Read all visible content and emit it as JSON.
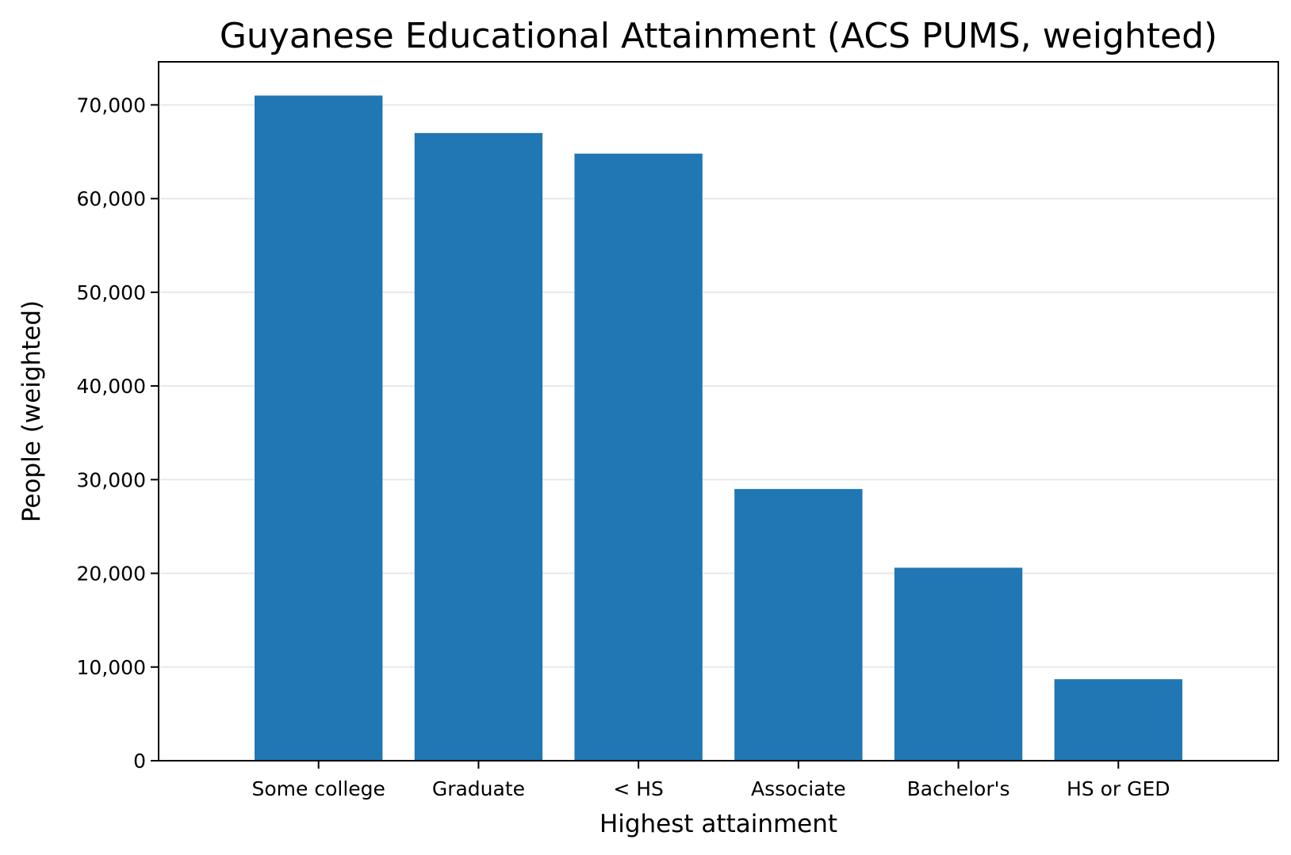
{
  "chart_data": {
    "type": "bar",
    "title": "Guyanese Educational Attainment (ACS PUMS, weighted)",
    "xlabel": "Highest attainment",
    "ylabel": "People (weighted)",
    "categories": [
      "Some college",
      "Graduate",
      "< HS",
      "Associate",
      "Bachelor's",
      "HS or GED"
    ],
    "values": [
      71000,
      67000,
      64800,
      29000,
      20600,
      8700
    ],
    "ylim": [
      0,
      74600
    ],
    "yticks": [
      0,
      10000,
      20000,
      30000,
      40000,
      50000,
      60000,
      70000
    ],
    "ytick_labels": [
      "0",
      "10,000",
      "20,000",
      "30,000",
      "40,000",
      "50,000",
      "60,000",
      "70,000"
    ],
    "grid": "y-major",
    "legend": "none",
    "colors": {
      "bar": "#2077b4",
      "grid": "#e8e8e8",
      "axis": "#000000",
      "background": "#ffffff"
    }
  }
}
